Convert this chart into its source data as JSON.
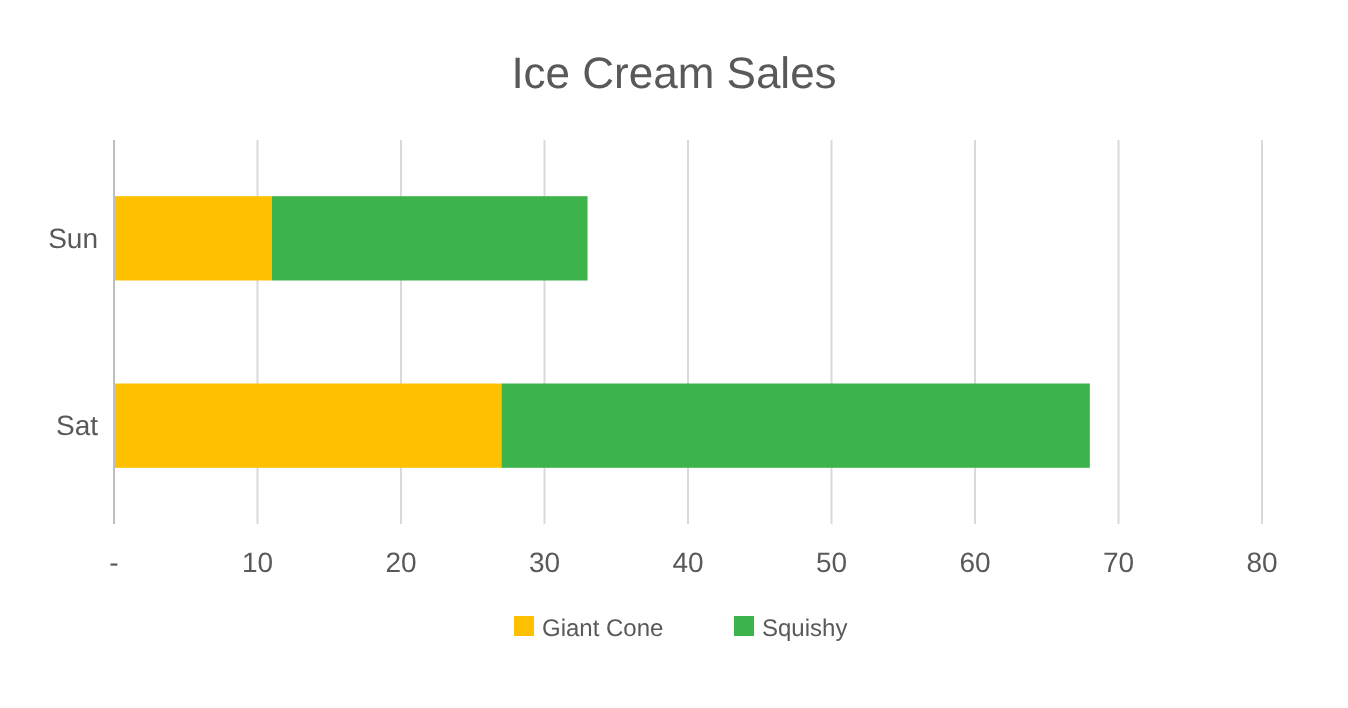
{
  "chart_data": {
    "type": "bar",
    "orientation": "horizontal",
    "stacked": true,
    "title": "Ice Cream Sales",
    "categories": [
      "Sun",
      "Sat"
    ],
    "series": [
      {
        "name": "Giant Cone",
        "color": "#ffc000",
        "values": [
          11,
          27
        ]
      },
      {
        "name": "Squishy",
        "color": "#3cb44b",
        "values": [
          22,
          41
        ]
      }
    ],
    "xlim": [
      0,
      80
    ],
    "xticks": [
      {
        "value": 0,
        "label": "-"
      },
      10,
      20,
      30,
      40,
      50,
      60,
      70,
      80
    ],
    "grid": "x",
    "legend": "bottom"
  }
}
